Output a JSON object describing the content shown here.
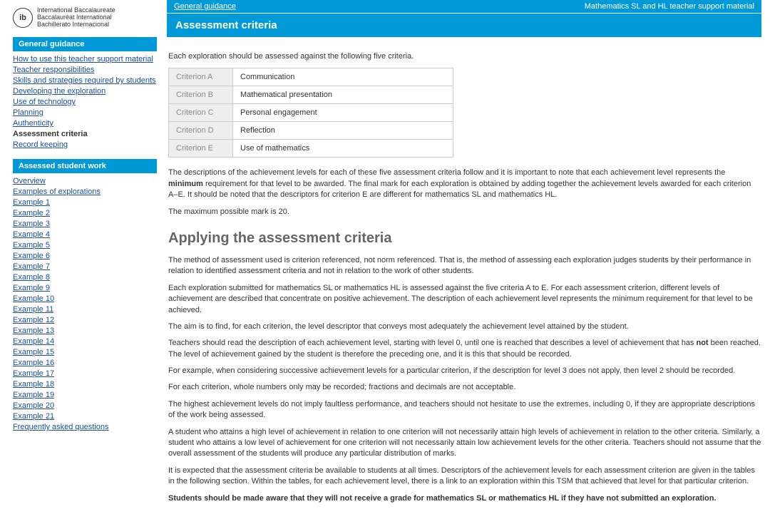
{
  "logo": {
    "mark": "ib",
    "line1": "International Baccalaureate",
    "line2": "Baccalauréat International",
    "line3": "Bachillerato Internacional"
  },
  "sidebar": {
    "section1_title": "General guidance",
    "section1_items": [
      {
        "label": "How to use this teacher support material",
        "current": false
      },
      {
        "label": "Teacher responsibilities",
        "current": false
      },
      {
        "label": "Skills and strategies required by students",
        "current": false
      },
      {
        "label": "Developing the exploration",
        "current": false
      },
      {
        "label": "Use of technology",
        "current": false
      },
      {
        "label": "Planning",
        "current": false
      },
      {
        "label": "Authenticity",
        "current": false
      },
      {
        "label": "Assessment criteria",
        "current": true
      },
      {
        "label": "Record keeping",
        "current": false
      }
    ],
    "section2_title": "Assessed student work",
    "section2_items": [
      {
        "label": "Overview"
      },
      {
        "label": "Examples of explorations"
      },
      {
        "label": "Example 1"
      },
      {
        "label": "Example 2"
      },
      {
        "label": "Example 3"
      },
      {
        "label": "Example 4"
      },
      {
        "label": "Example 5"
      },
      {
        "label": "Example 6"
      },
      {
        "label": "Example 7"
      },
      {
        "label": "Example 8"
      },
      {
        "label": "Example 9"
      },
      {
        "label": "Example 10"
      },
      {
        "label": "Example 11"
      },
      {
        "label": "Example 12"
      },
      {
        "label": "Example 13"
      },
      {
        "label": "Example 14"
      },
      {
        "label": "Example 15"
      },
      {
        "label": "Example 16"
      },
      {
        "label": "Example 17"
      },
      {
        "label": "Example 18"
      },
      {
        "label": "Example 19"
      },
      {
        "label": "Example 20"
      },
      {
        "label": "Example 21"
      },
      {
        "label": "Frequently asked questions"
      }
    ]
  },
  "breadcrumb": {
    "left": "General guidance",
    "right": "Mathematics SL and HL teacher support material"
  },
  "page_title": "Assessment criteria",
  "intro_p": "Each exploration should be assessed against the following five criteria.",
  "criteria": [
    {
      "key": "Criterion A",
      "val": "Communication"
    },
    {
      "key": "Criterion B",
      "val": "Mathematical presentation"
    },
    {
      "key": "Criterion C",
      "val": "Personal engagement"
    },
    {
      "key": "Criterion D",
      "val": "Reflection"
    },
    {
      "key": "Criterion E",
      "val": "Use of mathematics"
    }
  ],
  "desc_p1_a": "The descriptions of the achievement levels for each of these five assessment criteria follow and it is important to note that each achievement level represents the ",
  "desc_p1_bold": "minimum",
  "desc_p1_b": " requirement for that level to be awarded. The final mark for each exploration is obtained by adding together the achievement levels awarded for each criterion A–E. It should be noted that the descriptors for criterion E are different for mathematics SL and mathematics HL.",
  "desc_p2": "The maximum possible mark is 20.",
  "h2": "Applying the assessment criteria",
  "body_p1": "The method of assessment used is criterion referenced, not norm referenced. That is, the method of assessing each exploration judges students by their performance in relation to identified assessment criteria and not in relation to the work of other students.",
  "body_p2": "Each exploration submitted for mathematics SL or mathematics HL is assessed against the five criteria A to E. For each assessment criterion, different levels of achievement are described that concentrate on positive achievement. The description of each achievement level represents the minimum requirement for that level to be achieved.",
  "body_p3": "The aim is to find, for each criterion, the level descriptor that conveys most adequately the achievement level attained by the student.",
  "body_p4_a": "Teachers should read the description of each achievement level, starting with level 0, until one is reached that describes a level of achievement that has ",
  "body_p4_bold": "not",
  "body_p4_b": " been reached. The level of achievement gained by the student is therefore the preceding one, and it is this that should be recorded.",
  "body_p5": "For example, when considering successive achievement levels for a particular criterion, if the description for level 3 does not apply, then level 2 should be recorded.",
  "body_p6": "For each criterion, whole numbers only may be recorded; fractions and decimals are not acceptable.",
  "body_p7": "The highest achievement levels do not imply faultless performance, and teachers should not hesitate to use the extremes, including 0, if they are appropriate descriptions of the work being assessed.",
  "body_p8": "A student who attains a high level of achievement in relation to one criterion will not necessarily attain high levels of achievement in relation to the other criteria. Similarly, a student who attains a low level of achievement for one criterion will not necessarily attain low achievement levels for the other criteria. Teachers should not assume that the overall assessment of the students will produce any particular distribution of marks.",
  "body_p9": "It is expected that the assessment criteria be available to students at all times. Descriptors of the achievement levels for each assessment criterion are given in the tables in the following section. Within the tables, for each achievement level, there is a link to an exploration within this TSM that achieved that level for that particular criterion.",
  "body_p10": "Students should be made aware that they will not receive a grade for mathematics SL or mathematics HL if they have not submitted an exploration."
}
